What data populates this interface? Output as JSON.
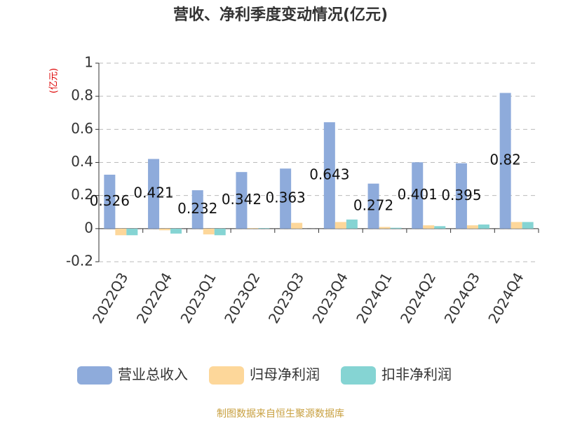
{
  "chart_data": {
    "type": "bar",
    "title": "营收、净利季度变动情况(亿元)",
    "y_unit": "(亿元)",
    "categories": [
      "2022Q3",
      "2022Q4",
      "2023Q1",
      "2023Q2",
      "2023Q3",
      "2023Q4",
      "2024Q1",
      "2024Q2",
      "2024Q3",
      "2024Q4"
    ],
    "series": [
      {
        "name": "营业总收入",
        "color": "#8eabdb",
        "values": [
          0.326,
          0.421,
          0.232,
          0.342,
          0.363,
          0.643,
          0.272,
          0.401,
          0.395,
          0.82
        ]
      },
      {
        "name": "归母净利润",
        "color": "#fdd79a",
        "values": [
          -0.04,
          -0.01,
          -0.035,
          0.003,
          0.035,
          0.04,
          0.01,
          0.02,
          0.02,
          0.04
        ]
      },
      {
        "name": "扣非净利润",
        "color": "#85d4d3",
        "values": [
          -0.04,
          -0.03,
          -0.04,
          0.003,
          0.0,
          0.055,
          0.005,
          0.015,
          0.025,
          0.04
        ]
      }
    ],
    "ylim": [
      -0.2,
      1
    ],
    "yticks": [
      -0.2,
      0,
      0.2,
      0.4,
      0.6,
      0.8,
      1
    ],
    "grid": true,
    "source": "制图数据来自恒生聚源数据库"
  }
}
